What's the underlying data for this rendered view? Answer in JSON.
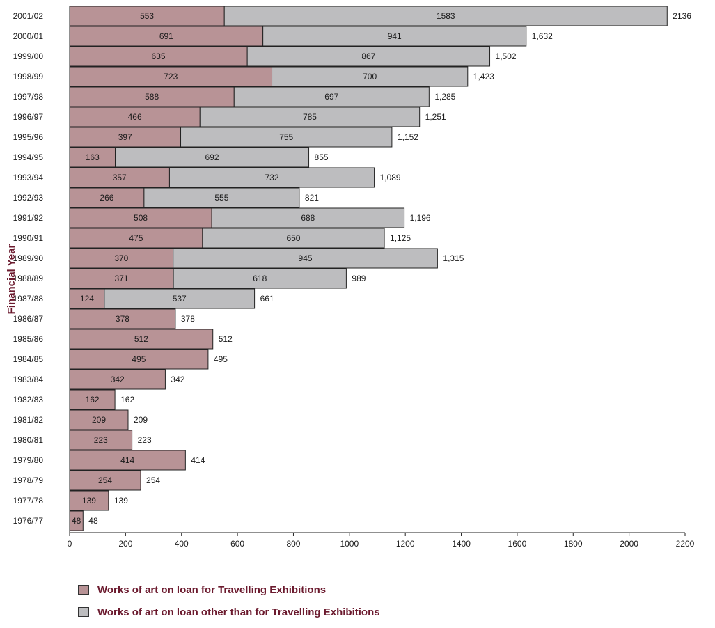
{
  "chart_data": {
    "type": "bar",
    "orientation": "horizontal",
    "stacked": true,
    "ylabel": "Financial Year",
    "xlabel": "",
    "xlim": [
      0,
      2200
    ],
    "xticks": [
      0,
      200,
      400,
      600,
      800,
      1000,
      1200,
      1400,
      1600,
      1800,
      2000,
      2200
    ],
    "categories": [
      "2001/02",
      "2000/01",
      "1999/00",
      "1998/99",
      "1997/98",
      "1996/97",
      "1995/96",
      "1994/95",
      "1993/94",
      "1992/93",
      "1991/92",
      "1990/91",
      "1989/90",
      "1988/89",
      "1987/88",
      "1986/87",
      "1985/86",
      "1984/85",
      "1983/84",
      "1982/83",
      "1981/82",
      "1980/81",
      "1979/80",
      "1978/79",
      "1977/78",
      "1976/77"
    ],
    "series": [
      {
        "name": "Works of art on loan for Travelling Exhibitions",
        "color": "#b89396",
        "values": [
          553,
          691,
          635,
          723,
          588,
          466,
          397,
          163,
          357,
          266,
          508,
          475,
          370,
          371,
          124,
          378,
          512,
          495,
          342,
          162,
          209,
          223,
          414,
          254,
          139,
          48
        ]
      },
      {
        "name": "Works of art on loan other than for Travelling Exhibitions",
        "color": "#bdbdbf",
        "values": [
          1583,
          941,
          867,
          700,
          697,
          785,
          755,
          692,
          732,
          555,
          688,
          650,
          945,
          618,
          537,
          null,
          null,
          null,
          null,
          null,
          null,
          null,
          null,
          null,
          null,
          null
        ]
      }
    ],
    "totals": [
      "2136",
      "1,632",
      "1,502",
      "1,423",
      "1,285",
      "1,251",
      "1,152",
      "855",
      "1,089",
      "821",
      "1,196",
      "1,125",
      "1,315",
      "989",
      "661",
      "378",
      "512",
      "495",
      "342",
      "162",
      "209",
      "223",
      "414",
      "254",
      "139",
      "48"
    ],
    "legend_position": "bottom-left",
    "grid": false
  }
}
